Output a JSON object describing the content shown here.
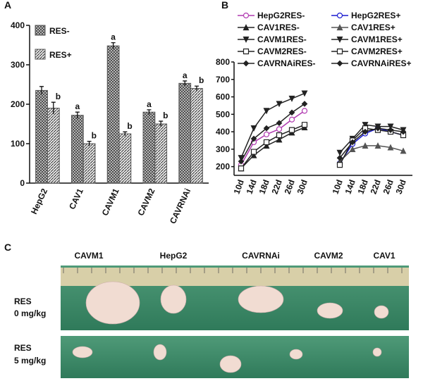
{
  "panels": {
    "a": "A",
    "b": "B",
    "c": "C"
  },
  "chart_data": [
    {
      "type": "bar",
      "categories": [
        "HepG2",
        "CAV1",
        "CAVM1",
        "CAVM2",
        "CAVRNAi"
      ],
      "series": [
        {
          "name": "RES-",
          "color": "#555555",
          "pattern": "crosshatch",
          "values": [
            235,
            172,
            348,
            180,
            253
          ],
          "errors": [
            10,
            8,
            8,
            6,
            6
          ],
          "letters": [
            null,
            "a",
            "a",
            "a",
            "a"
          ]
        },
        {
          "name": "RES+",
          "color": "#555555",
          "pattern": "diagonal",
          "values": [
            190,
            100,
            125,
            150,
            240
          ],
          "errors": [
            15,
            6,
            5,
            7,
            6
          ],
          "letters": [
            "b",
            "b",
            "b",
            "b",
            "b"
          ]
        }
      ],
      "ylim": [
        0,
        400
      ],
      "yticks": [
        0,
        100,
        200,
        300,
        400
      ],
      "legend": "top-left"
    },
    {
      "type": "line",
      "categories": [
        "10d",
        "14d",
        "18d",
        "22d",
        "26d",
        "30d",
        "10d",
        "14d",
        "18d",
        "22d",
        "26d",
        "30d"
      ],
      "series": [
        {
          "name": "HepG2RES-",
          "color": "#b03ab0",
          "marker": "circle",
          "values": [
            210,
            340,
            385,
            415,
            470,
            520,
            null,
            null,
            null,
            null,
            null,
            null
          ]
        },
        {
          "name": "CAV1RES-",
          "color": "#222222",
          "marker": "triangle",
          "values": [
            190,
            265,
            320,
            355,
            395,
            425,
            null,
            null,
            null,
            null,
            null,
            null
          ]
        },
        {
          "name": "CAVM1RES-",
          "color": "#222222",
          "marker": "triangle-down",
          "values": [
            250,
            420,
            520,
            560,
            590,
            620,
            null,
            null,
            null,
            null,
            null,
            null
          ]
        },
        {
          "name": "CAVM2RES-",
          "color": "#222222",
          "marker": "square",
          "values": [
            190,
            285,
            340,
            380,
            410,
            440,
            null,
            null,
            null,
            null,
            null,
            null
          ]
        },
        {
          "name": "CAVRNAiRES-",
          "color": "#222222",
          "marker": "diamond",
          "values": [
            230,
            360,
            420,
            450,
            510,
            560,
            null,
            null,
            null,
            null,
            null,
            null
          ]
        },
        {
          "name": "HepG2RES+",
          "color": "#1a1ad0",
          "marker": "circle",
          "values": [
            null,
            null,
            null,
            null,
            null,
            null,
            220,
            330,
            390,
            420,
            400,
            380
          ]
        },
        {
          "name": "CAV1RES+",
          "color": "#555555",
          "marker": "triangle",
          "values": [
            null,
            null,
            null,
            null,
            null,
            null,
            230,
            300,
            320,
            320,
            310,
            290
          ]
        },
        {
          "name": "CAVM1RES+",
          "color": "#222222",
          "marker": "triangle-down",
          "values": [
            null,
            null,
            null,
            null,
            null,
            null,
            280,
            360,
            440,
            430,
            430,
            410
          ]
        },
        {
          "name": "CAVM2RES+",
          "color": "#222222",
          "marker": "square",
          "values": [
            null,
            null,
            null,
            null,
            null,
            null,
            210,
            350,
            420,
            410,
            400,
            380
          ]
        },
        {
          "name": "CAVRNAiRES+",
          "color": "#222222",
          "marker": "diamond",
          "values": [
            null,
            null,
            null,
            null,
            null,
            null,
            250,
            340,
            400,
            420,
            410,
            400
          ]
        }
      ],
      "ylim": [
        150,
        800
      ],
      "yticks": [
        200,
        300,
        400,
        500,
        600,
        700,
        800
      ]
    }
  ],
  "photo": {
    "columns": [
      "CAVM1",
      "HepG2",
      "CAVRNAi",
      "CAVM2",
      "CAV1"
    ],
    "rows": [
      {
        "line1": "RES",
        "line2": "0 mg/kg"
      },
      {
        "line1": "RES",
        "line2": "5 mg/kg"
      }
    ]
  }
}
